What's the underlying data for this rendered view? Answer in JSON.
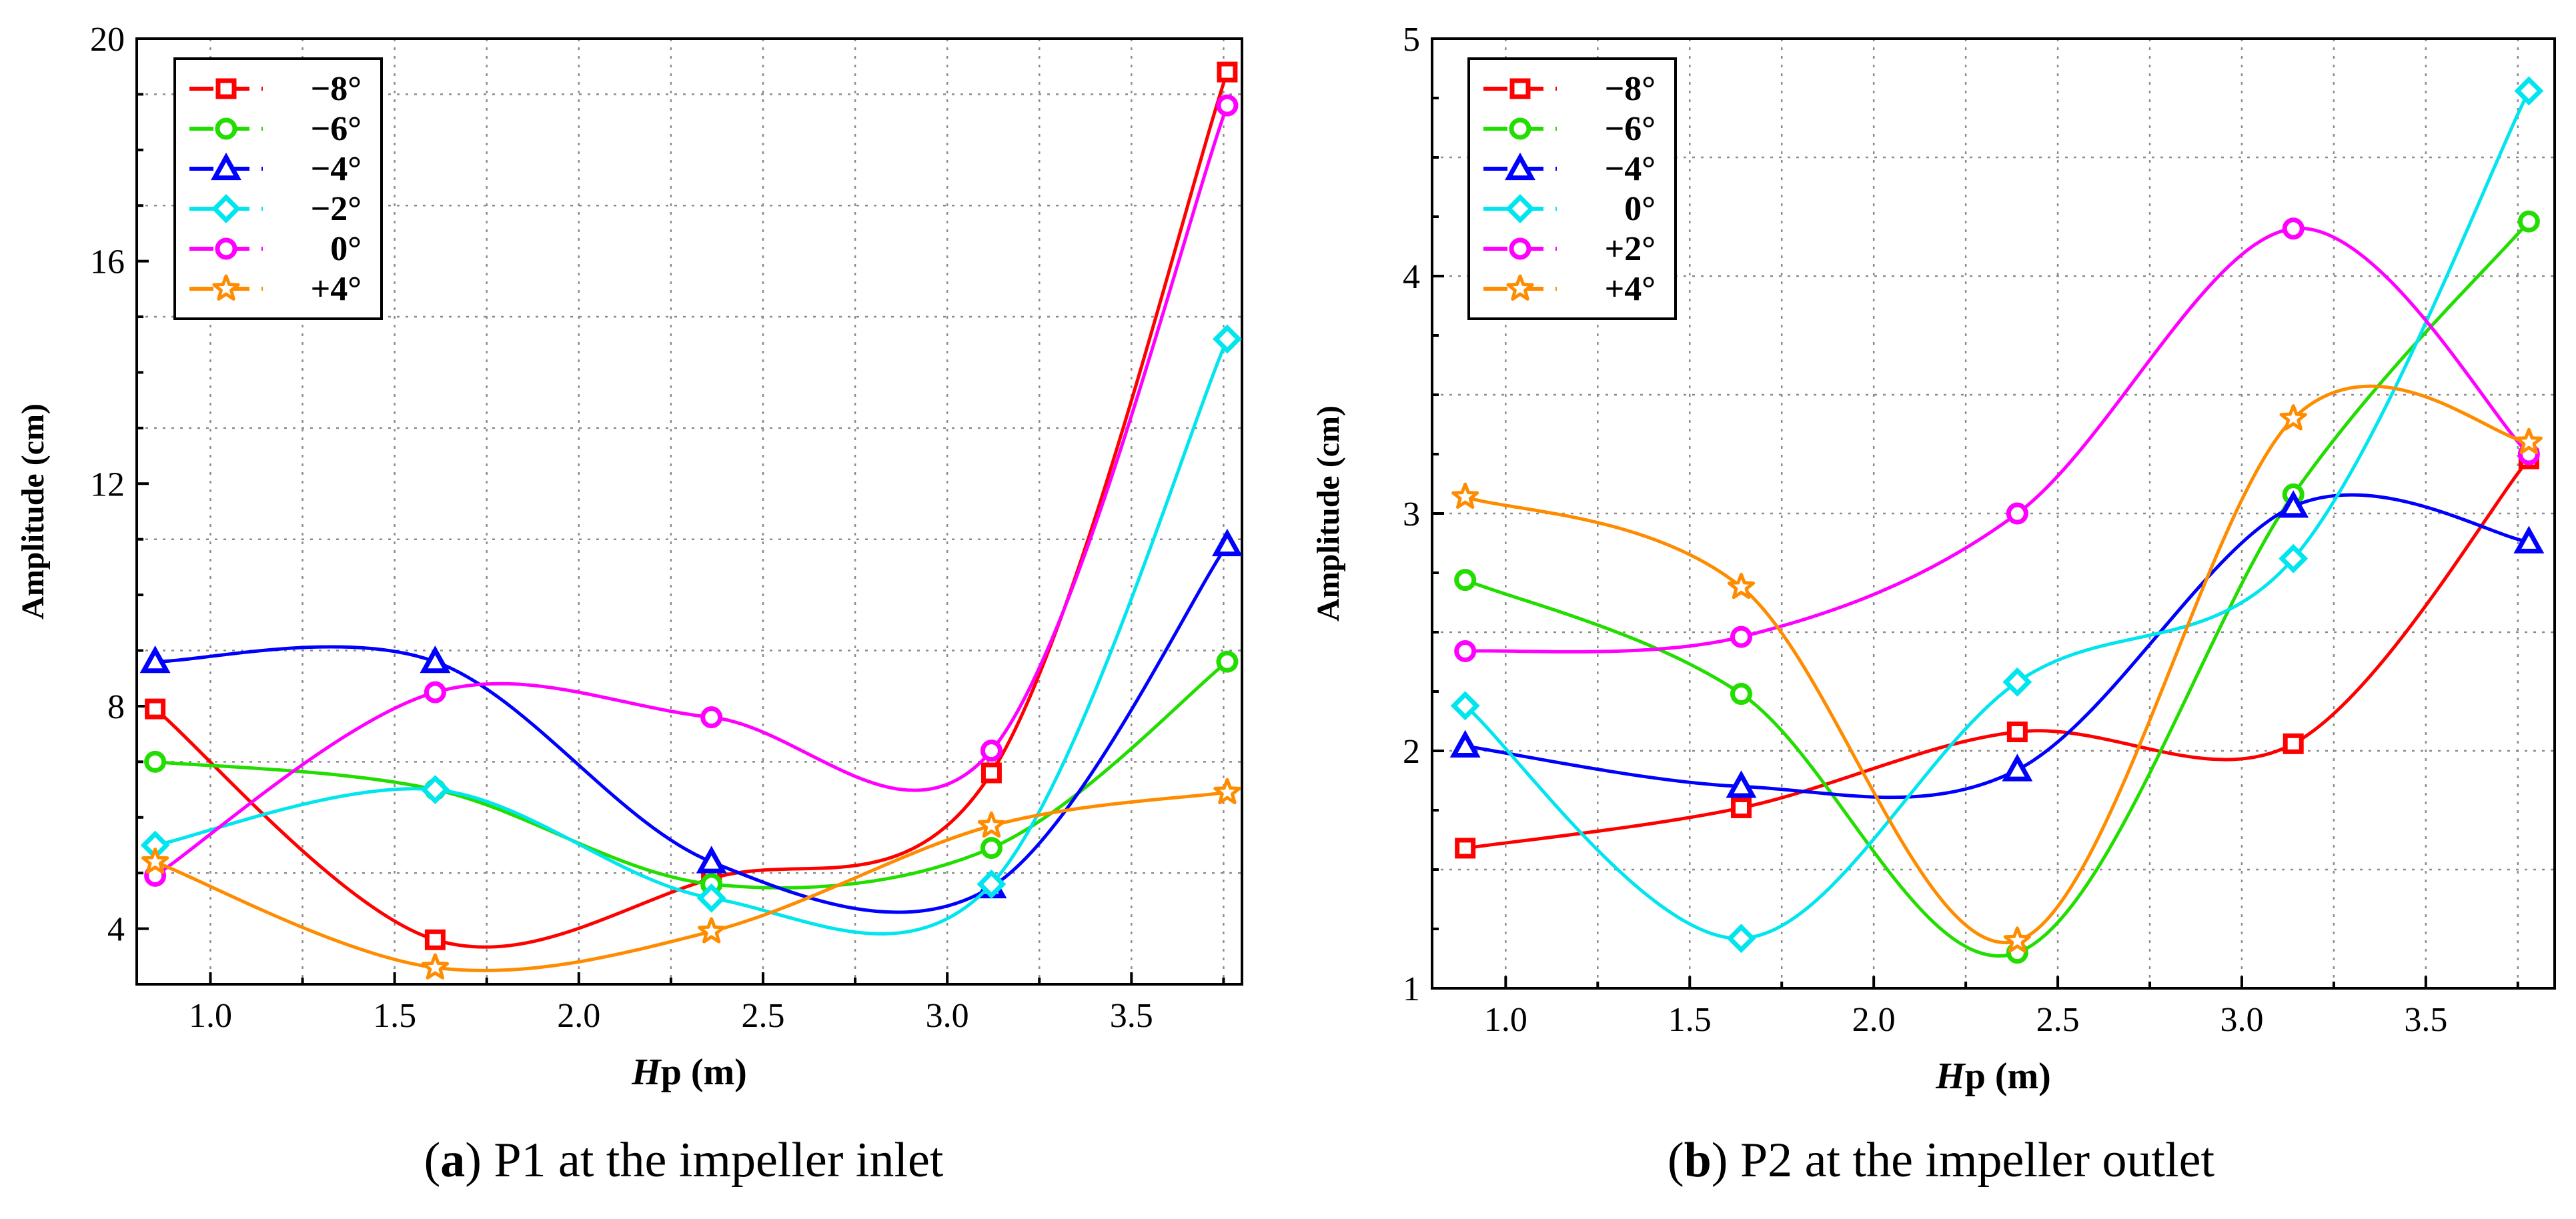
{
  "chart_data": [
    {
      "type": "line",
      "panel_label": "a",
      "caption": "P1 at the impeller inlet",
      "xlabel_italic": "H",
      "xlabel_rest": "p (m)",
      "ylabel": "Amplitude (cm)",
      "xlim": [
        0.8,
        3.8
      ],
      "ylim": [
        3,
        20
      ],
      "xticks": [
        1.0,
        1.5,
        2.0,
        2.5,
        3.0,
        3.5
      ],
      "xtick_labels": [
        "1.0",
        "1.5",
        "2.0",
        "2.5",
        "3.0",
        "3.5"
      ],
      "yticks": [
        4,
        8,
        12,
        16,
        20
      ],
      "ytick_labels": [
        "4",
        "8",
        "12",
        "16",
        "20"
      ],
      "grid": true,
      "legend_position": "top-left",
      "x": [
        0.85,
        1.61,
        2.36,
        3.12,
        3.76
      ],
      "series": [
        {
          "name": "−8°",
          "marker": "square",
          "color": "#ff0000",
          "values": [
            7.95,
            3.8,
            4.9,
            6.8,
            19.4
          ]
        },
        {
          "name": "−6°",
          "marker": "circle",
          "color": "#22dd00",
          "values": [
            7.0,
            6.5,
            4.8,
            5.45,
            8.8
          ]
        },
        {
          "name": "−4°",
          "marker": "triangle",
          "color": "#0000ff",
          "values": [
            8.8,
            8.8,
            5.2,
            4.75,
            10.9
          ]
        },
        {
          "name": "−2°",
          "marker": "diamond",
          "color": "#00e5ee",
          "values": [
            5.5,
            6.5,
            4.55,
            4.8,
            14.6
          ]
        },
        {
          "name": "0°",
          "marker": "circle",
          "color": "#ff00ff",
          "values": [
            4.95,
            8.25,
            7.8,
            7.2,
            18.8
          ]
        },
        {
          "name": "+4°",
          "marker": "star",
          "color": "#ff8c00",
          "values": [
            5.2,
            3.3,
            3.95,
            5.85,
            6.45
          ]
        }
      ]
    },
    {
      "type": "line",
      "panel_label": "b",
      "caption": "P2 at the impeller outlet",
      "xlabel_italic": "H",
      "xlabel_rest": "p (m)",
      "ylabel": "Amplitude (cm)",
      "xlim": [
        0.8,
        3.85
      ],
      "ylim": [
        1,
        5
      ],
      "xticks": [
        1.0,
        1.5,
        2.0,
        2.5,
        3.0,
        3.5
      ],
      "xtick_labels": [
        "1.0",
        "1.5",
        "2.0",
        "2.5",
        "3.0",
        "3.5"
      ],
      "yticks": [
        1,
        2,
        3,
        4,
        5
      ],
      "ytick_labels": [
        "1",
        "2",
        "3",
        "4",
        "5"
      ],
      "grid": true,
      "legend_position": "top-left",
      "x": [
        0.89,
        1.64,
        2.39,
        3.14,
        3.78
      ],
      "series": [
        {
          "name": "−8°",
          "marker": "square",
          "color": "#ff0000",
          "values": [
            1.59,
            1.76,
            2.08,
            2.03,
            3.23
          ]
        },
        {
          "name": "−6°",
          "marker": "circle",
          "color": "#22dd00",
          "values": [
            2.72,
            2.24,
            1.15,
            3.08,
            4.23
          ]
        },
        {
          "name": "−4°",
          "marker": "triangle",
          "color": "#0000ff",
          "values": [
            2.02,
            1.85,
            1.92,
            3.03,
            2.88
          ]
        },
        {
          "name": "0°",
          "marker": "diamond",
          "color": "#00e5ee",
          "values": [
            2.19,
            1.21,
            2.29,
            2.81,
            4.78
          ]
        },
        {
          "name": "+2°",
          "marker": "circle",
          "color": "#ff00ff",
          "values": [
            2.42,
            2.48,
            3.0,
            4.2,
            3.25
          ]
        },
        {
          "name": "+4°",
          "marker": "star",
          "color": "#ff8c00",
          "values": [
            3.07,
            2.69,
            1.2,
            3.4,
            3.3
          ]
        }
      ]
    }
  ]
}
